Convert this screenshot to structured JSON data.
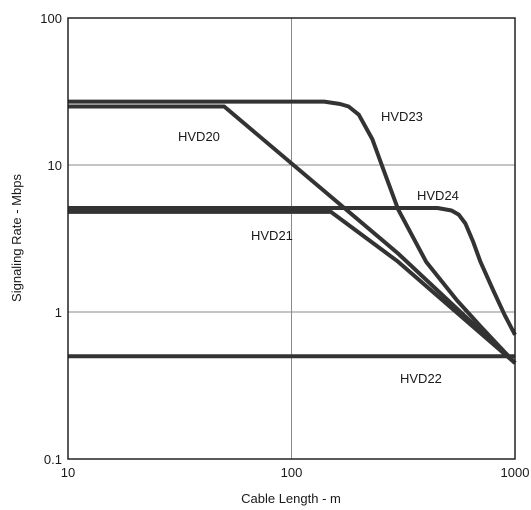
{
  "chart_data": {
    "type": "line",
    "xscale": "log",
    "yscale": "log",
    "xlabel": "Cable Length - m",
    "ylabel": "Signaling Rate - Mbps",
    "xlim": [
      10,
      1000
    ],
    "ylim": [
      0.1,
      100
    ],
    "x_ticks": [
      "10",
      "100",
      "1000"
    ],
    "y_ticks": [
      "100",
      "10",
      "1",
      "0.1"
    ],
    "grid": true,
    "line_color": "#333333",
    "series": [
      {
        "name": "HVD20",
        "x": [
          10,
          50,
          300,
          1000
        ],
        "y": [
          25,
          25,
          2.5,
          0.45
        ]
      },
      {
        "name": "HVD21",
        "x": [
          10,
          150,
          300,
          1000
        ],
        "y": [
          4.8,
          4.8,
          2.2,
          0.45
        ]
      },
      {
        "name": "HVD22",
        "x": [
          10,
          1000
        ],
        "y": [
          0.5,
          0.5
        ]
      },
      {
        "name": "HVD23",
        "x": [
          10,
          140,
          165,
          180,
          200,
          230,
          260,
          300,
          400,
          550,
          700,
          1000
        ],
        "y": [
          27,
          27,
          26,
          25,
          22,
          15,
          9,
          5,
          2.2,
          1.2,
          0.8,
          0.45
        ]
      },
      {
        "name": "HVD24",
        "x": [
          10,
          450,
          520,
          560,
          600,
          650,
          700,
          800,
          900,
          1000
        ],
        "y": [
          5.1,
          5.1,
          4.9,
          4.6,
          4.0,
          3.0,
          2.2,
          1.4,
          0.95,
          0.7
        ]
      }
    ]
  }
}
